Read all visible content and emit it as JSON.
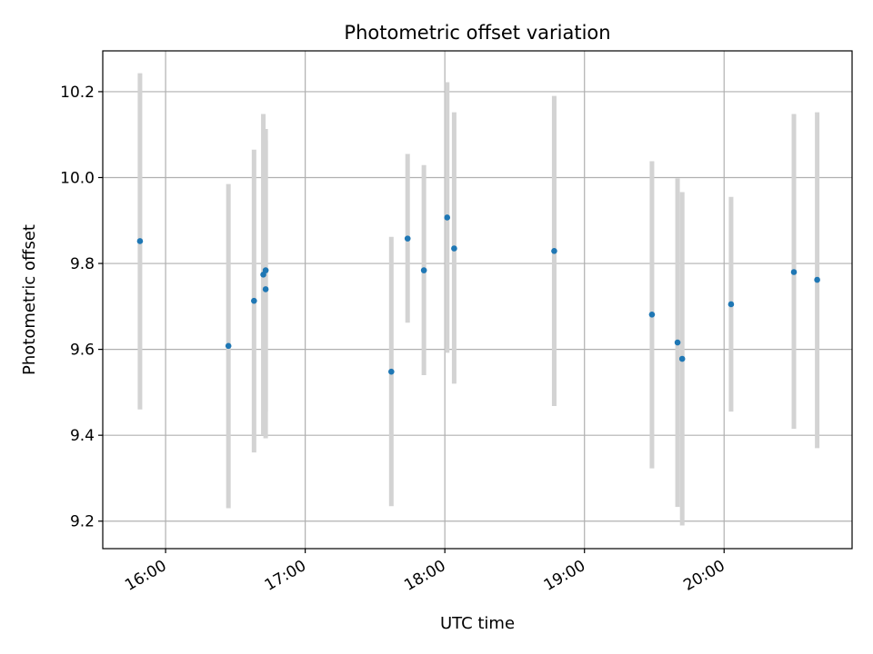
{
  "chart_data": {
    "type": "scatter",
    "title": "Photometric offset variation",
    "xlabel": "UTC time",
    "ylabel": "Photometric offset",
    "x_is_time": true,
    "xlim": [
      "15:33",
      "20:55"
    ],
    "ylim": [
      9.136,
      10.295
    ],
    "x_ticks": [
      "16:00",
      "17:00",
      "18:00",
      "19:00",
      "20:00"
    ],
    "y_ticks": [
      9.2,
      9.4,
      9.6,
      9.8,
      10.0,
      10.2
    ],
    "grid": true,
    "error_bar_color": "#d3d3d3",
    "marker_color": "#1f77b4",
    "points": [
      {
        "x": "15:49",
        "y": 9.852,
        "y_low": 9.46,
        "y_high": 10.243
      },
      {
        "x": "16:27",
        "y": 9.608,
        "y_low": 9.23,
        "y_high": 9.985
      },
      {
        "x": "16:38",
        "y": 9.713,
        "y_low": 9.36,
        "y_high": 10.065
      },
      {
        "x": "16:42",
        "y": 9.774,
        "y_low": 9.4,
        "y_high": 10.148
      },
      {
        "x": "16:43",
        "y": 9.784,
        "y_low": 9.455,
        "y_high": 10.113
      },
      {
        "x": "16:43",
        "y": 9.74,
        "y_low": 9.393,
        "y_high": 10.087
      },
      {
        "x": "17:37",
        "y": 9.548,
        "y_low": 9.235,
        "y_high": 9.862
      },
      {
        "x": "17:44",
        "y": 9.858,
        "y_low": 9.662,
        "y_high": 10.055
      },
      {
        "x": "17:51",
        "y": 9.784,
        "y_low": 9.54,
        "y_high": 10.029
      },
      {
        "x": "18:01",
        "y": 9.907,
        "y_low": 9.592,
        "y_high": 10.222
      },
      {
        "x": "18:04",
        "y": 9.835,
        "y_low": 9.52,
        "y_high": 10.152
      },
      {
        "x": "18:47",
        "y": 9.829,
        "y_low": 9.468,
        "y_high": 10.19
      },
      {
        "x": "19:29",
        "y": 9.681,
        "y_low": 9.323,
        "y_high": 10.038
      },
      {
        "x": "19:40",
        "y": 9.616,
        "y_low": 9.233,
        "y_high": 9.998
      },
      {
        "x": "19:42",
        "y": 9.578,
        "y_low": 9.19,
        "y_high": 9.966
      },
      {
        "x": "20:03",
        "y": 9.705,
        "y_low": 9.455,
        "y_high": 9.955
      },
      {
        "x": "20:30",
        "y": 9.78,
        "y_low": 9.415,
        "y_high": 10.148
      },
      {
        "x": "20:40",
        "y": 9.762,
        "y_low": 9.37,
        "y_high": 10.152
      }
    ]
  }
}
